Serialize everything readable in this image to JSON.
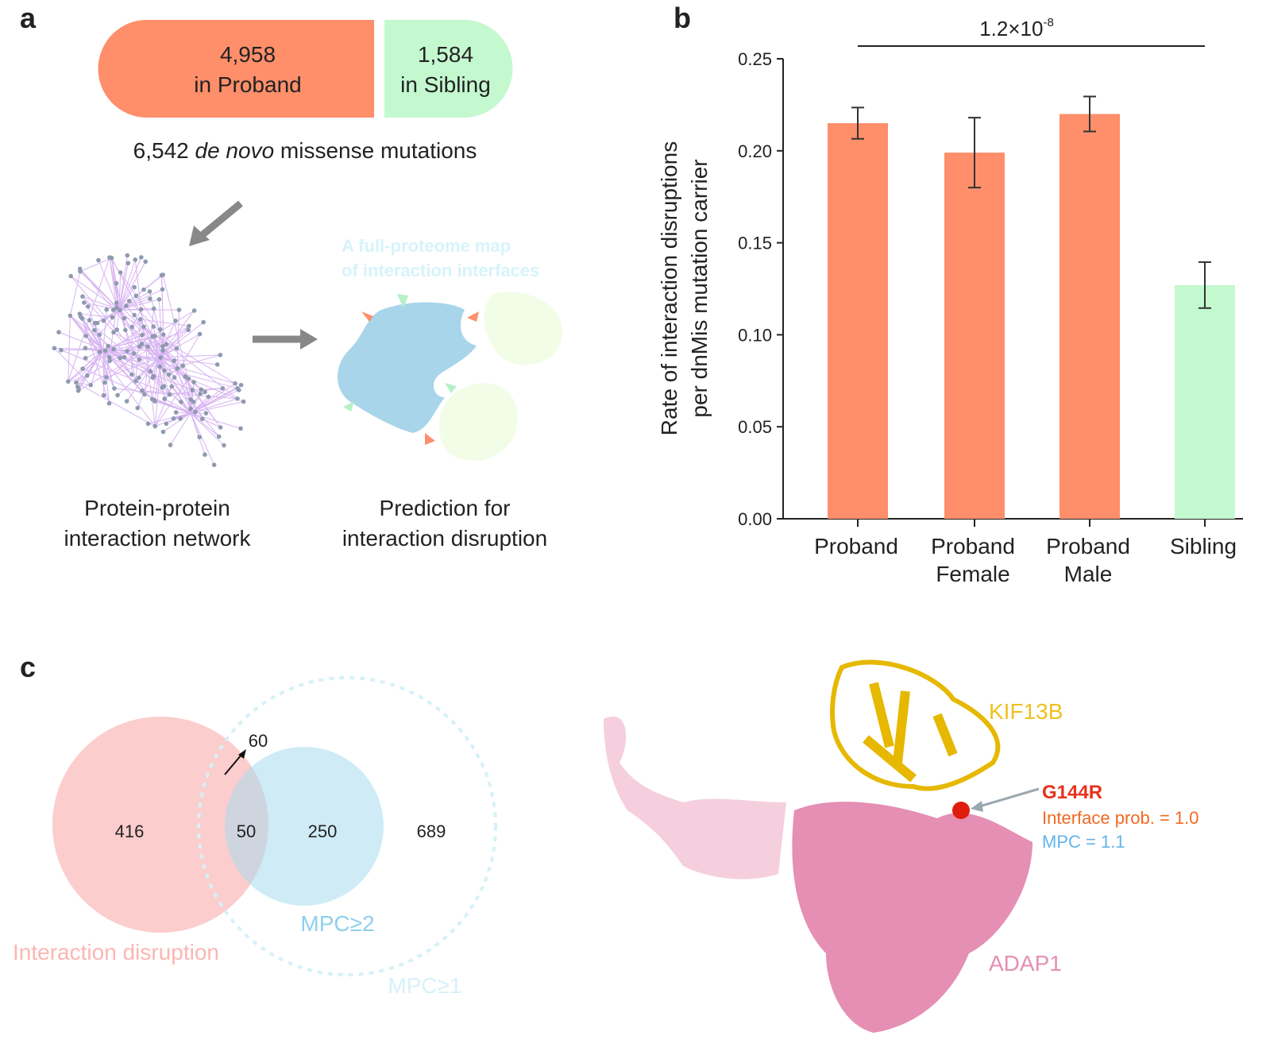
{
  "panel_a": {
    "label": "a",
    "proband_count": "4,958",
    "proband_text": "in Proband",
    "sibling_count": "1,584",
    "sibling_text": "in Sibling",
    "total_count": "6,542",
    "total_italic": "de novo",
    "total_rest": "missense mutations",
    "map_title": [
      "A full-proteome map",
      "of interaction interfaces"
    ],
    "network_caption": [
      "Protein-protein",
      "interaction network"
    ],
    "prediction_caption": [
      "Prediction for",
      "interaction disruption"
    ]
  },
  "chart_data": {
    "type": "bar",
    "label": "b",
    "ylabel": [
      "Rate of interaction disruptions",
      "per dnMis mutation carrier"
    ],
    "categories": [
      [
        "Proband"
      ],
      [
        "Proband",
        "Female"
      ],
      [
        "Proband",
        "Male"
      ],
      [
        "Sibling"
      ]
    ],
    "values": [
      0.215,
      0.199,
      0.22,
      0.127
    ],
    "errors": [
      0.0085,
      0.019,
      0.0095,
      0.0125
    ],
    "colors": [
      "#fe8f6a",
      "#fe8f6a",
      "#fe8f6a",
      "#c4f8cf"
    ],
    "ylim": [
      0,
      0.25
    ],
    "yticks": [
      {
        "value": 0,
        "label": "0.00"
      },
      0.05,
      {
        "value": 0.1,
        "label": "0.10"
      },
      0.15,
      {
        "value": 0.2,
        "label": "0.20"
      },
      0.25
    ],
    "significance": {
      "base": "1.2×10",
      "exponent": "-8"
    }
  },
  "panel_c": {
    "label": "c",
    "venn": {
      "only_disruption": "416",
      "overlap": "50",
      "only_mpc2": "250",
      "only_mpc1": "689",
      "arrow_count": "60",
      "disruption_label": "Interaction disruption",
      "mpc2_label": "MPC≥2",
      "mpc1_label": "MPC≥1"
    },
    "structure": {
      "partner": "KIF13B",
      "mutation": "G144R",
      "interface": "Interface prob. = 1.0",
      "mpc": "MPC = 1.1",
      "protein": "ADAP1"
    }
  }
}
